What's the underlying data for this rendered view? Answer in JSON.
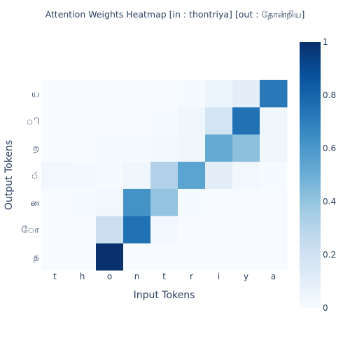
{
  "chart_data": {
    "type": "heatmap",
    "title": "Attention Weights Heatmap [in : thontriya] [out : தோன்றிய]",
    "xlabel": "Input Tokens",
    "ylabel": "Output Tokens",
    "x": [
      "t",
      "h",
      "o",
      "n",
      "t",
      "r",
      "i",
      "y",
      "a"
    ],
    "y": [
      "த",
      "ோ",
      "ன",
      "்",
      "ற",
      "ி",
      "ய"
    ],
    "z": [
      [
        0.0,
        0.0,
        1.0,
        0.0,
        0.0,
        0.0,
        0.0,
        0.0,
        0.0
      ],
      [
        0.0,
        0.0,
        0.22,
        0.75,
        0.02,
        0.0,
        0.0,
        0.0,
        0.0
      ],
      [
        0.0,
        0.01,
        0.03,
        0.62,
        0.4,
        0.01,
        0.0,
        0.0,
        0.0
      ],
      [
        0.03,
        0.02,
        0.01,
        0.04,
        0.32,
        0.55,
        0.1,
        0.03,
        0.01
      ],
      [
        0.0,
        0.0,
        0.01,
        0.01,
        0.02,
        0.04,
        0.52,
        0.42,
        0.04
      ],
      [
        0.0,
        0.0,
        0.0,
        0.0,
        0.01,
        0.04,
        0.18,
        0.75,
        0.04
      ],
      [
        0.0,
        0.0,
        0.0,
        0.0,
        0.0,
        0.01,
        0.05,
        0.1,
        0.72
      ]
    ],
    "zlim": [
      0,
      1
    ],
    "colorbar": {
      "ticks": [
        "0",
        "0.2",
        "0.4",
        "0.6",
        "0.8",
        "1"
      ],
      "colorscale": [
        "#f7fbff",
        "#deebf7",
        "#c6dbef",
        "#9ecae1",
        "#6baed6",
        "#4292c6",
        "#2171b5",
        "#08519c",
        "#08306b"
      ]
    },
    "grid": false
  }
}
